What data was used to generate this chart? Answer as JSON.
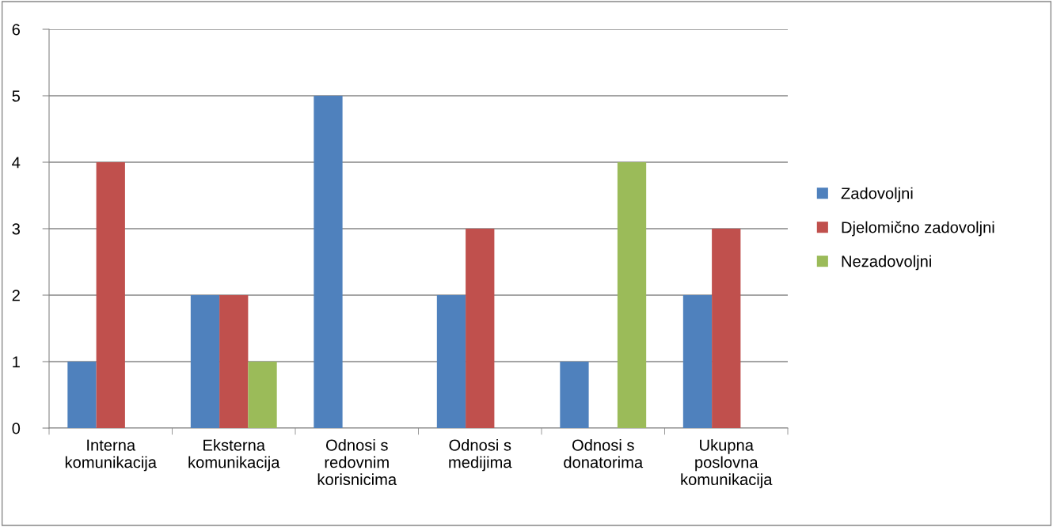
{
  "chart_data": {
    "type": "bar",
    "categories": [
      "Interna\nkomunikacija",
      "Eksterna\nkomunikacija",
      "Odnosi s\nredovnim\nkorisnicima",
      "Odnosi s\nmedijima",
      "Odnosi s\ndonatorima",
      "Ukupna\nposlovna\nkomunikacija"
    ],
    "series": [
      {
        "name": "Zadovoljni",
        "color": "#4f81bd",
        "values": [
          1,
          2,
          5,
          2,
          1,
          2
        ]
      },
      {
        "name": "Djelomično zadovoljni",
        "color": "#c0504d",
        "values": [
          4,
          2,
          0,
          3,
          0,
          3
        ]
      },
      {
        "name": "Nezadovoljni",
        "color": "#9bbb59",
        "values": [
          0,
          1,
          0,
          0,
          4,
          0
        ]
      }
    ],
    "ylim": [
      0,
      6
    ],
    "yticks": [
      0,
      1,
      2,
      3,
      4,
      5,
      6
    ],
    "grid": "y",
    "legend": "right"
  }
}
